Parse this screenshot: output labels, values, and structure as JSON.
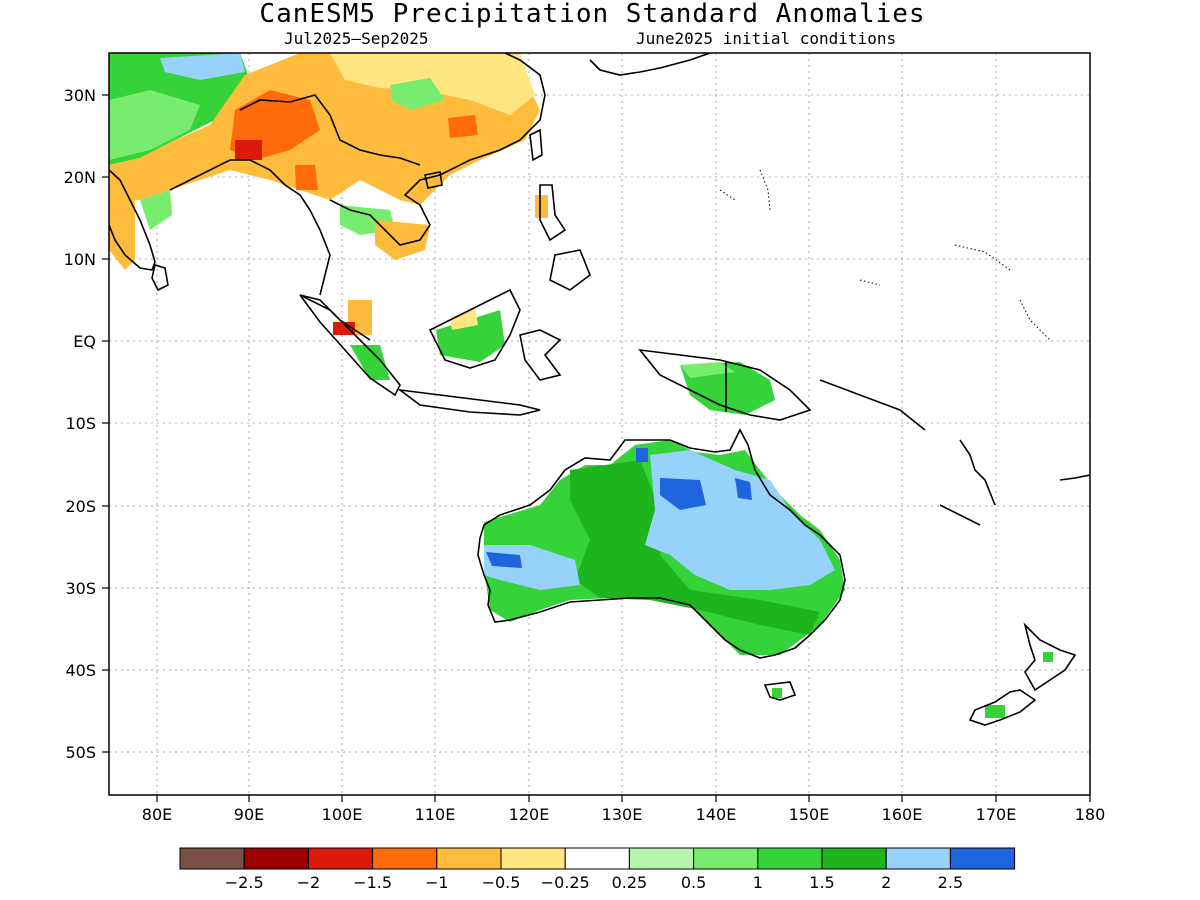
{
  "title": "CanESM5 Precipitation Standard Anomalies",
  "subtitle_left": "Jul2025–Sep2025",
  "subtitle_right": "June2025 initial conditions",
  "lat_labels": [
    "30N",
    "20N",
    "10N",
    "EQ",
    "10S",
    "20S",
    "30S",
    "40S",
    "50S"
  ],
  "lon_labels": [
    "80E",
    "90E",
    "100E",
    "110E",
    "120E",
    "130E",
    "140E",
    "150E",
    "160E",
    "170E",
    "180"
  ],
  "colorbar": {
    "colors": [
      "#7a5044",
      "#a00000",
      "#dc1a0a",
      "#ff6a0a",
      "#ffbc3c",
      "#ffe680",
      "#ffffff",
      "#b4f7aa",
      "#78ec6e",
      "#36d23a",
      "#1eb41e",
      "#96d2fa",
      "#1e64dc"
    ],
    "labels": [
      "−2.5",
      "−2",
      "−1.5",
      "−1",
      "−0.5",
      "−0.25",
      "0.25",
      "0.5",
      "1",
      "1.5",
      "2",
      "2.5"
    ]
  }
}
